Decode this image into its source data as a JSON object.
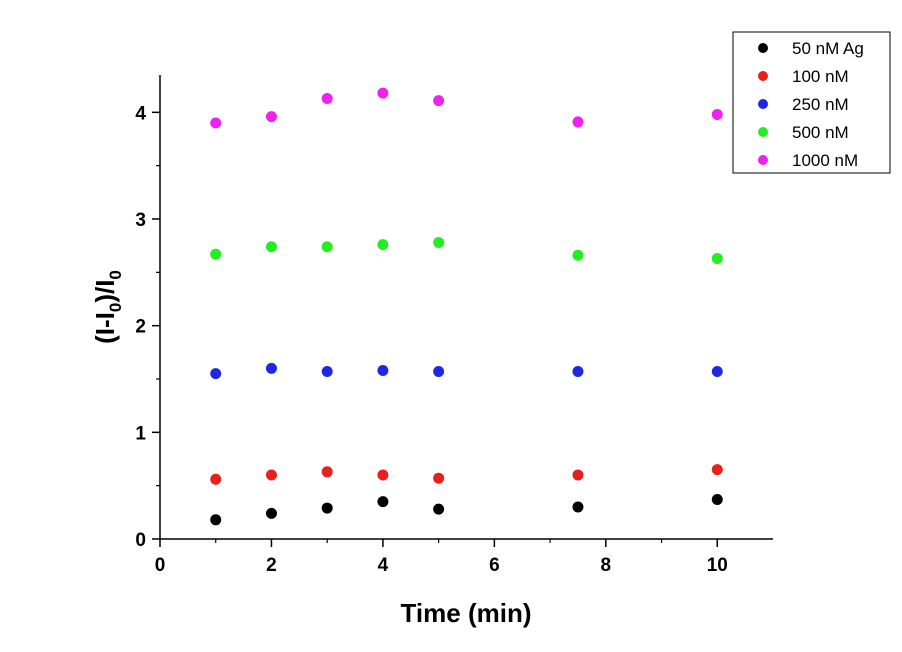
{
  "chart_data": {
    "type": "scatter",
    "title": "",
    "xlabel": "Time (min)",
    "ylabel_parts": {
      "a": "(I-I",
      "sub1": "0",
      "b": ")/I",
      "sub2": "0"
    },
    "xlim": [
      0,
      11
    ],
    "ylim": [
      0,
      4.35
    ],
    "xticks": [
      0,
      2,
      4,
      6,
      8,
      10
    ],
    "yticks": [
      0,
      1,
      2,
      3,
      4
    ],
    "legend_position": "top-right",
    "grid": false,
    "x": [
      1,
      2,
      3,
      4,
      5,
      7.5,
      10
    ],
    "series": [
      {
        "name": "50 nM Ag",
        "color": "#000000",
        "values": [
          0.18,
          0.24,
          0.29,
          0.35,
          0.28,
          0.3,
          0.37
        ]
      },
      {
        "name": "100 nM",
        "color": "#e8201c",
        "values": [
          0.56,
          0.6,
          0.63,
          0.6,
          0.57,
          0.6,
          0.65
        ]
      },
      {
        "name": "250 nM",
        "color": "#1f28e0",
        "values": [
          1.55,
          1.6,
          1.57,
          1.58,
          1.57,
          1.57,
          1.57
        ]
      },
      {
        "name": "500 nM",
        "color": "#22ee22",
        "values": [
          2.67,
          2.74,
          2.74,
          2.76,
          2.78,
          2.66,
          2.63
        ]
      },
      {
        "name": "1000 nM",
        "color": "#ee22ee",
        "values": [
          3.9,
          3.96,
          4.13,
          4.18,
          4.11,
          3.91,
          3.98
        ]
      }
    ]
  }
}
